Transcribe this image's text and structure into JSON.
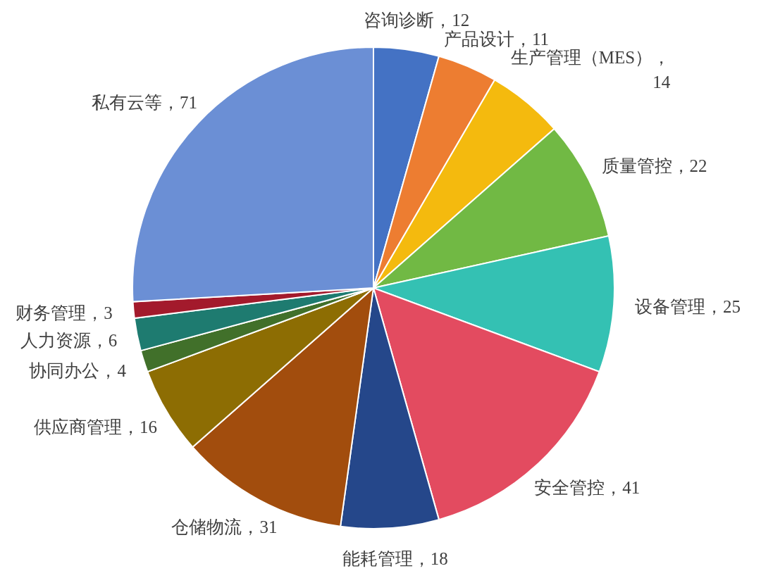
{
  "chart_data": {
    "type": "pie",
    "categories": [
      "咨询诊断",
      "产品设计",
      "生产管理（MES）",
      "质量管控",
      "设备管理",
      "安全管控",
      "能耗管理",
      "仓储物流",
      "供应商管理",
      "协同办公",
      "人力资源",
      "财务管理",
      "私有云等"
    ],
    "values": [
      12,
      11,
      14,
      22,
      25,
      41,
      18,
      31,
      16,
      4,
      6,
      3,
      71
    ],
    "colors": [
      "#4472c4",
      "#ed7d31",
      "#f4ba0e",
      "#71b944",
      "#34c1b3",
      "#e34b60",
      "#25478a",
      "#a24d0d",
      "#8d6d03",
      "#41702a",
      "#1e7b70",
      "#a31a2c",
      "#6b8fd5"
    ],
    "value_labels": [
      "，12",
      "，11",
      "，14",
      "，22",
      "，25",
      "，41",
      "，18",
      "，31",
      "，16",
      "，4",
      "，6",
      "，3",
      "，71"
    ]
  }
}
